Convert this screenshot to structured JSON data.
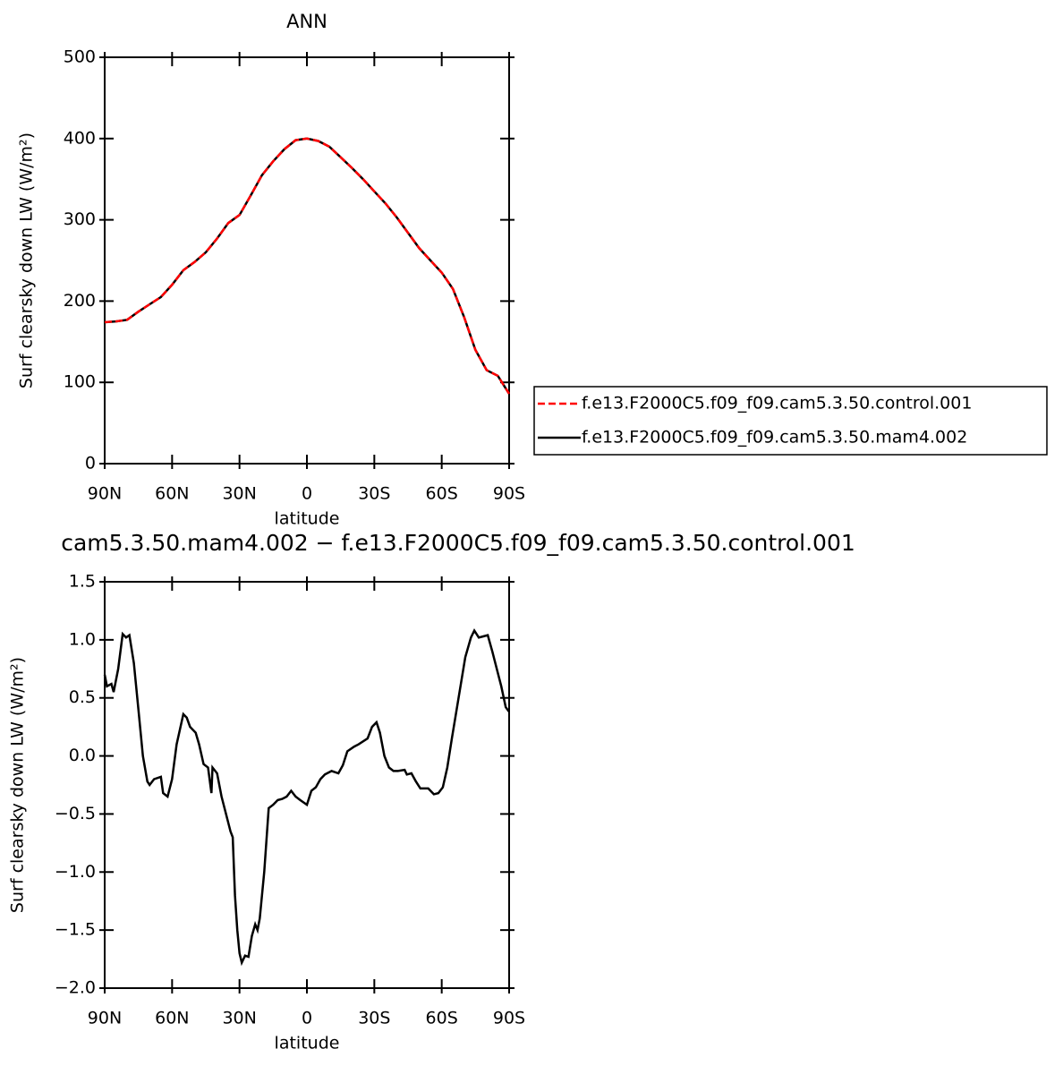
{
  "chart_data": [
    {
      "type": "line",
      "title": "ANN",
      "xlabel": "latitude",
      "ylabel": "Surf clearsky down LW (W/m²)",
      "x": [
        90,
        85,
        80,
        75,
        70,
        65,
        60,
        55,
        50,
        45,
        40,
        35,
        30,
        25,
        20,
        15,
        10,
        5,
        0,
        -5,
        -10,
        -15,
        -20,
        -25,
        -30,
        -35,
        -40,
        -45,
        -50,
        -55,
        -60,
        -65,
        -70,
        -75,
        -80,
        -85,
        -90
      ],
      "series": [
        {
          "name": "f.e13.F2000C5.f09_f09.cam5.3.50.control.001",
          "color": "#ff0000",
          "line_style": "dashed",
          "values": [
            174,
            175,
            177,
            187,
            196,
            205,
            220,
            238,
            248,
            260,
            277,
            296,
            306,
            330,
            355,
            372,
            387,
            398,
            400,
            397,
            390,
            377,
            364,
            350,
            335,
            320,
            303,
            284,
            265,
            250,
            235,
            215,
            180,
            140,
            115,
            108,
            86
          ]
        },
        {
          "name": "f.e13.F2000C5.f09_f09.cam5.3.50.mam4.002",
          "color": "#000000",
          "line_style": "solid",
          "values": [
            174,
            175,
            177,
            187,
            196,
            205,
            220,
            238,
            248,
            260,
            277,
            296,
            306,
            330,
            355,
            372,
            387,
            398,
            400,
            397,
            390,
            377,
            364,
            350,
            335,
            320,
            303,
            284,
            265,
            250,
            235,
            215,
            180,
            140,
            115,
            108,
            86
          ]
        }
      ],
      "xlim": [
        90,
        -90
      ],
      "xticks": [
        {
          "value": 90,
          "label": "90N"
        },
        {
          "value": 60,
          "label": "60N"
        },
        {
          "value": 30,
          "label": "30N"
        },
        0,
        {
          "value": -30,
          "label": "30S"
        },
        {
          "value": -60,
          "label": "60S"
        },
        {
          "value": -90,
          "label": "90S"
        }
      ],
      "ylim": [
        0,
        500
      ],
      "yticks": [
        0,
        100,
        200,
        300,
        400,
        500
      ],
      "legend": "right"
    },
    {
      "type": "line",
      "title": "cam5.3.50.mam4.002 − f.e13.F2000C5.f09_f09.cam5.3.50.control.001",
      "xlabel": "latitude",
      "ylabel": "Surf clearsky down LW (W/m²)",
      "color": "#000000",
      "x": [
        90,
        89,
        87,
        86,
        84,
        82,
        80.5,
        79,
        77,
        75,
        73,
        71,
        70,
        68,
        65,
        64,
        62,
        60,
        58,
        55,
        53.5,
        52,
        49.5,
        48,
        46,
        44,
        42.5,
        42,
        40,
        38,
        36,
        34,
        33,
        32,
        31,
        30,
        29,
        27.5,
        26,
        24.5,
        23,
        22,
        21,
        19,
        17,
        15,
        13,
        11,
        9,
        7,
        5,
        3,
        0,
        -2,
        -4,
        -6,
        -8,
        -11,
        -14,
        -16,
        -18,
        -21,
        -23,
        -27,
        -29,
        -31,
        -32.5,
        -34.5,
        -36.5,
        -38.5,
        -40.5,
        -43.5,
        -44.5,
        -46.5,
        -48.5,
        -50.5,
        -54,
        -56.5,
        -58.5,
        -60.5,
        -62.5,
        -64.5,
        -67.5,
        -70.5,
        -73,
        -74.5,
        -76.5,
        -78.5,
        -80.5,
        -82.5,
        -84.5,
        -86.5,
        -88.5,
        -90
      ],
      "values": [
        0.7,
        0.6,
        0.62,
        0.55,
        0.75,
        1.05,
        1.02,
        1.04,
        0.8,
        0.4,
        0.0,
        -0.22,
        -0.25,
        -0.2,
        -0.18,
        -0.32,
        -0.35,
        -0.2,
        0.1,
        0.36,
        0.33,
        0.25,
        0.2,
        0.1,
        -0.07,
        -0.1,
        -0.32,
        -0.1,
        -0.15,
        -0.35,
        -0.5,
        -0.65,
        -0.7,
        -1.2,
        -1.5,
        -1.7,
        -1.78,
        -1.72,
        -1.73,
        -1.55,
        -1.45,
        -1.5,
        -1.4,
        -1.0,
        -0.45,
        -0.42,
        -0.38,
        -0.37,
        -0.35,
        -0.3,
        -0.35,
        -0.38,
        -0.42,
        -0.3,
        -0.27,
        -0.2,
        -0.16,
        -0.13,
        -0.15,
        -0.08,
        0.04,
        0.08,
        0.1,
        0.15,
        0.25,
        0.29,
        0.2,
        0.0,
        -0.1,
        -0.13,
        -0.13,
        -0.12,
        -0.16,
        -0.15,
        -0.22,
        -0.28,
        -0.28,
        -0.33,
        -0.32,
        -0.27,
        -0.1,
        0.15,
        0.5,
        0.85,
        1.02,
        1.08,
        1.02,
        1.03,
        1.04,
        0.9,
        0.75,
        0.6,
        0.42,
        0.38
      ],
      "xlim": [
        90,
        -90
      ],
      "xticks": [
        {
          "value": 90,
          "label": "90N"
        },
        {
          "value": 60,
          "label": "60N"
        },
        {
          "value": 30,
          "label": "30N"
        },
        0,
        {
          "value": -30,
          "label": "30S"
        },
        {
          "value": -60,
          "label": "60S"
        },
        {
          "value": -90,
          "label": "90S"
        }
      ],
      "ylim": [
        -2.0,
        1.5
      ],
      "yticks": [
        {
          "value": -2.0,
          "label": "−2.0"
        },
        {
          "value": -1.5,
          "label": "−1.5"
        },
        {
          "value": -1.0,
          "label": "−1.0"
        },
        {
          "value": -0.5,
          "label": "−0.5"
        },
        {
          "value": 0.0,
          "label": "0.0"
        },
        0.5,
        {
          "value": 1.0,
          "label": "1.0"
        },
        1.5
      ]
    }
  ]
}
